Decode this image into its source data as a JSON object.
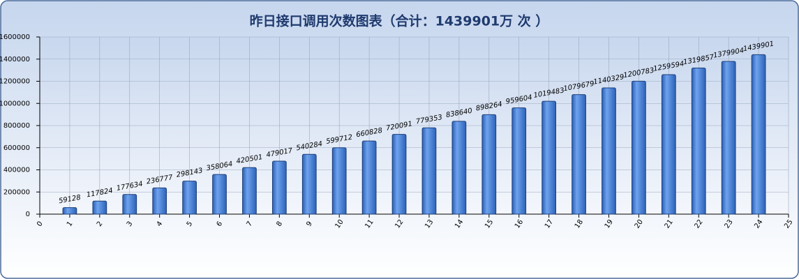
{
  "chart_data": {
    "type": "bar",
    "title": "昨日接口调用次数图表（合计：1439901万 次 ）",
    "x": [
      1,
      2,
      3,
      4,
      5,
      6,
      7,
      8,
      9,
      10,
      11,
      12,
      13,
      14,
      15,
      16,
      17,
      18,
      19,
      20,
      21,
      22,
      23,
      24
    ],
    "values": [
      59128,
      117824,
      177634,
      236777,
      298143,
      358064,
      420501,
      479017,
      540284,
      599712,
      660828,
      720091,
      779353,
      838640,
      898264,
      959604,
      1019483,
      1079679,
      1140329,
      1200783,
      1259594,
      1319857,
      1379904,
      1439901
    ],
    "color": "#3c7ad8",
    "xlim": [
      0,
      25
    ],
    "xticks": [
      0,
      1,
      2,
      3,
      4,
      5,
      6,
      7,
      8,
      9,
      10,
      11,
      12,
      13,
      14,
      15,
      16,
      17,
      18,
      19,
      20,
      21,
      22,
      23,
      24,
      25
    ],
    "ylim": [
      0,
      1600000
    ],
    "yticks": [
      0,
      200000,
      400000,
      600000,
      800000,
      1000000,
      1200000,
      1400000,
      1600000
    ],
    "grid": true
  }
}
